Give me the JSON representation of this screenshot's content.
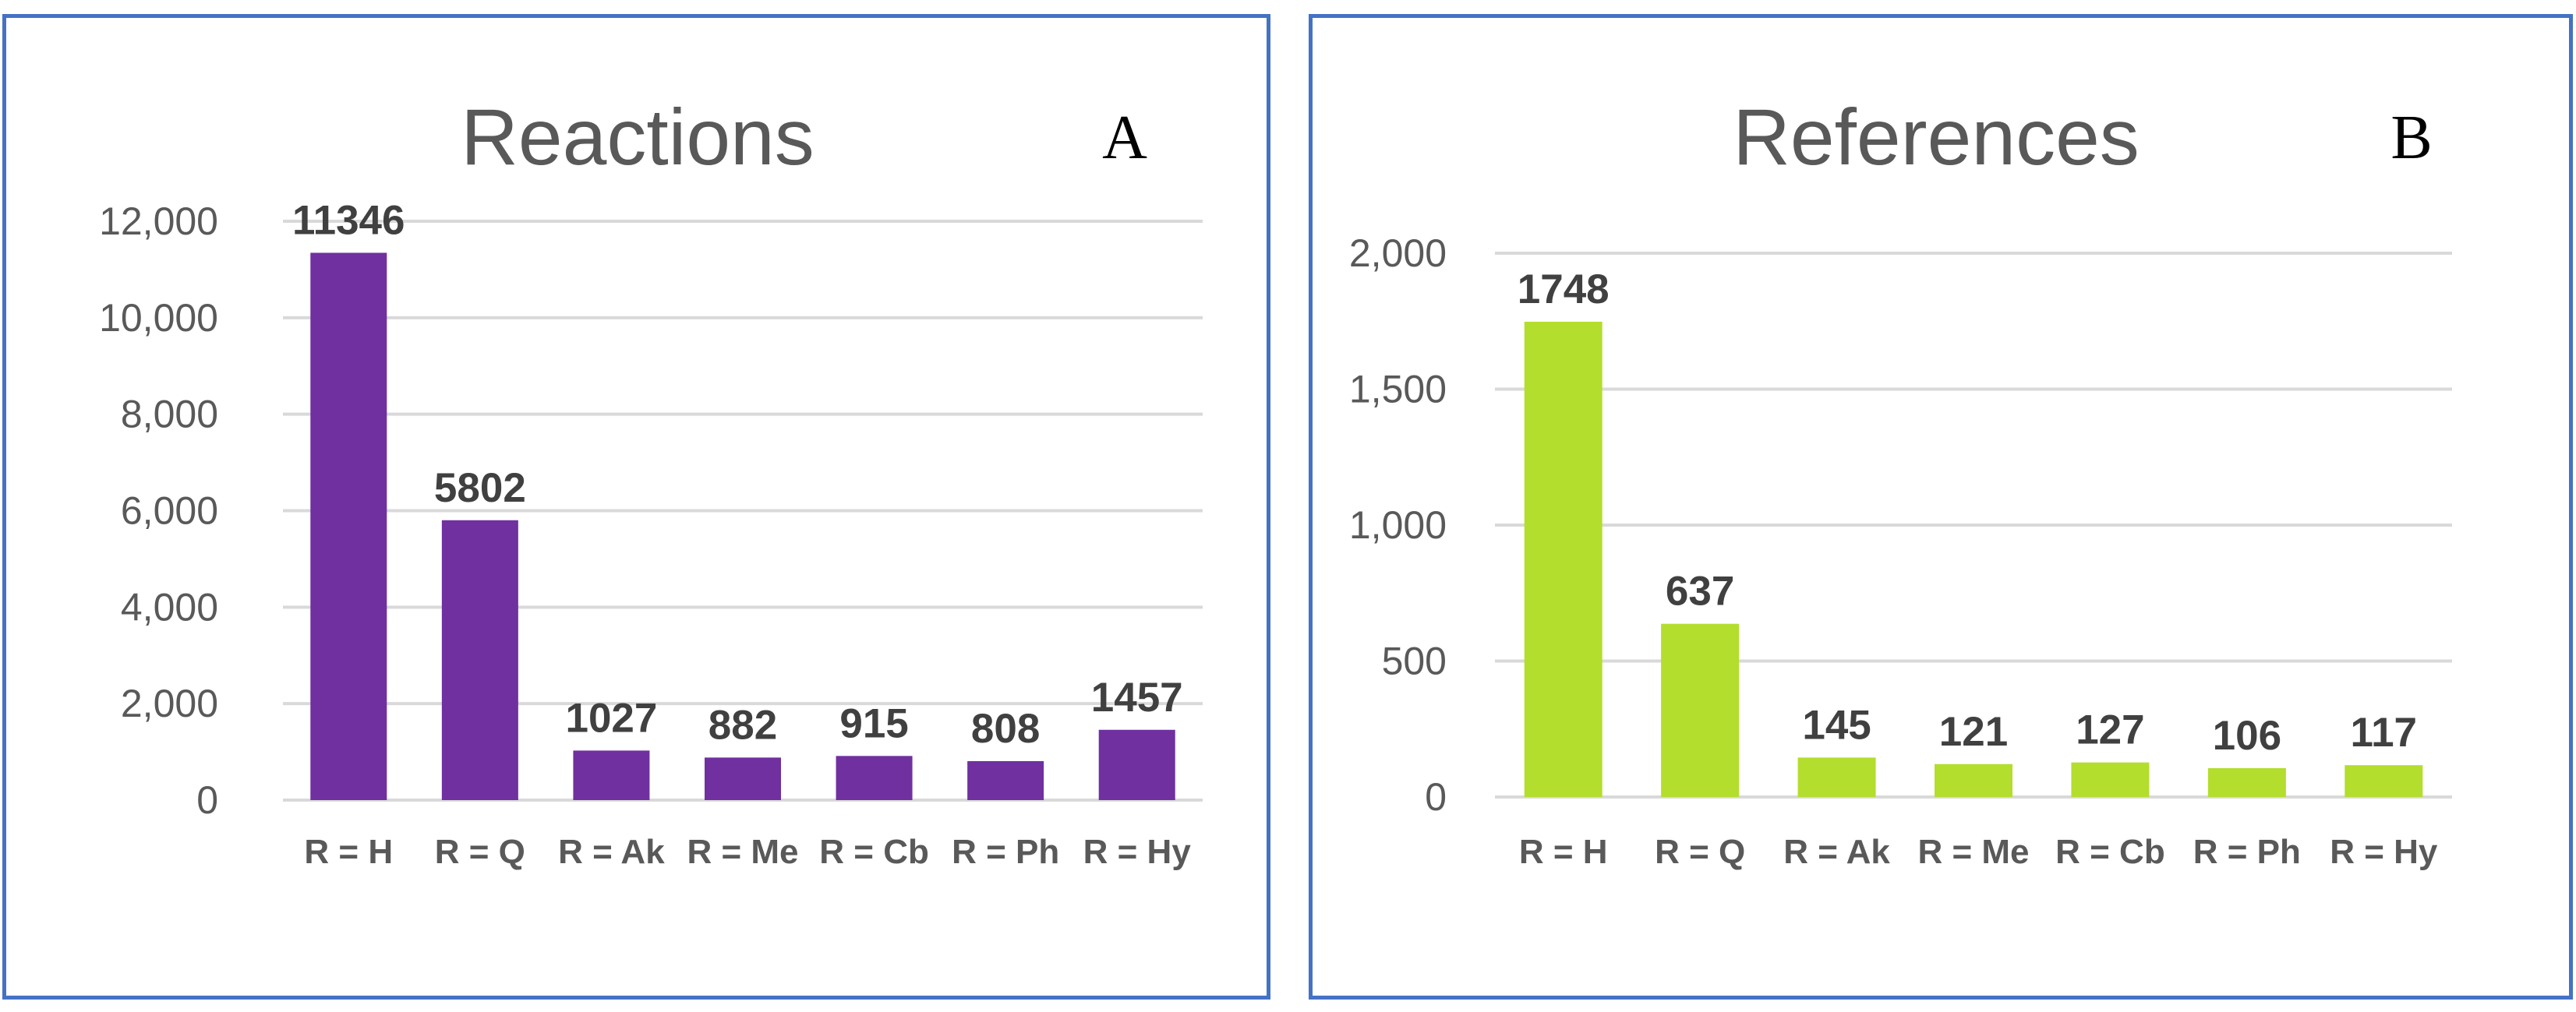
{
  "chart_data": [
    {
      "type": "bar",
      "title": "Reactions",
      "panel_letter": "A",
      "categories": [
        "R = H",
        "R = Q",
        "R = Ak",
        "R = Me",
        "R = Cb",
        "R = Ph",
        "R = Hy"
      ],
      "values": [
        11346,
        5802,
        1027,
        882,
        915,
        808,
        1457
      ],
      "ylim": [
        0,
        12000
      ],
      "yticks": [
        0,
        2000,
        4000,
        6000,
        8000,
        10000,
        12000
      ],
      "ytick_labels": [
        "0",
        "2,000",
        "4,000",
        "6,000",
        "8,000",
        "10,000",
        "12,000"
      ],
      "bar_color": "#7030A0",
      "grid": true,
      "legend": "none"
    },
    {
      "type": "bar",
      "title": "References",
      "panel_letter": "B",
      "categories": [
        "R = H",
        "R = Q",
        "R = Ak",
        "R = Me",
        "R = Cb",
        "R = Ph",
        "R = Hy"
      ],
      "values": [
        1748,
        637,
        145,
        121,
        127,
        106,
        117
      ],
      "ylim": [
        0,
        2000
      ],
      "yticks": [
        0,
        500,
        1000,
        1500,
        2000
      ],
      "ytick_labels": [
        "0",
        "500",
        "1,000",
        "1,500",
        "2,000"
      ],
      "bar_color": "#B3DE2D",
      "grid": true,
      "legend": "none"
    }
  ]
}
